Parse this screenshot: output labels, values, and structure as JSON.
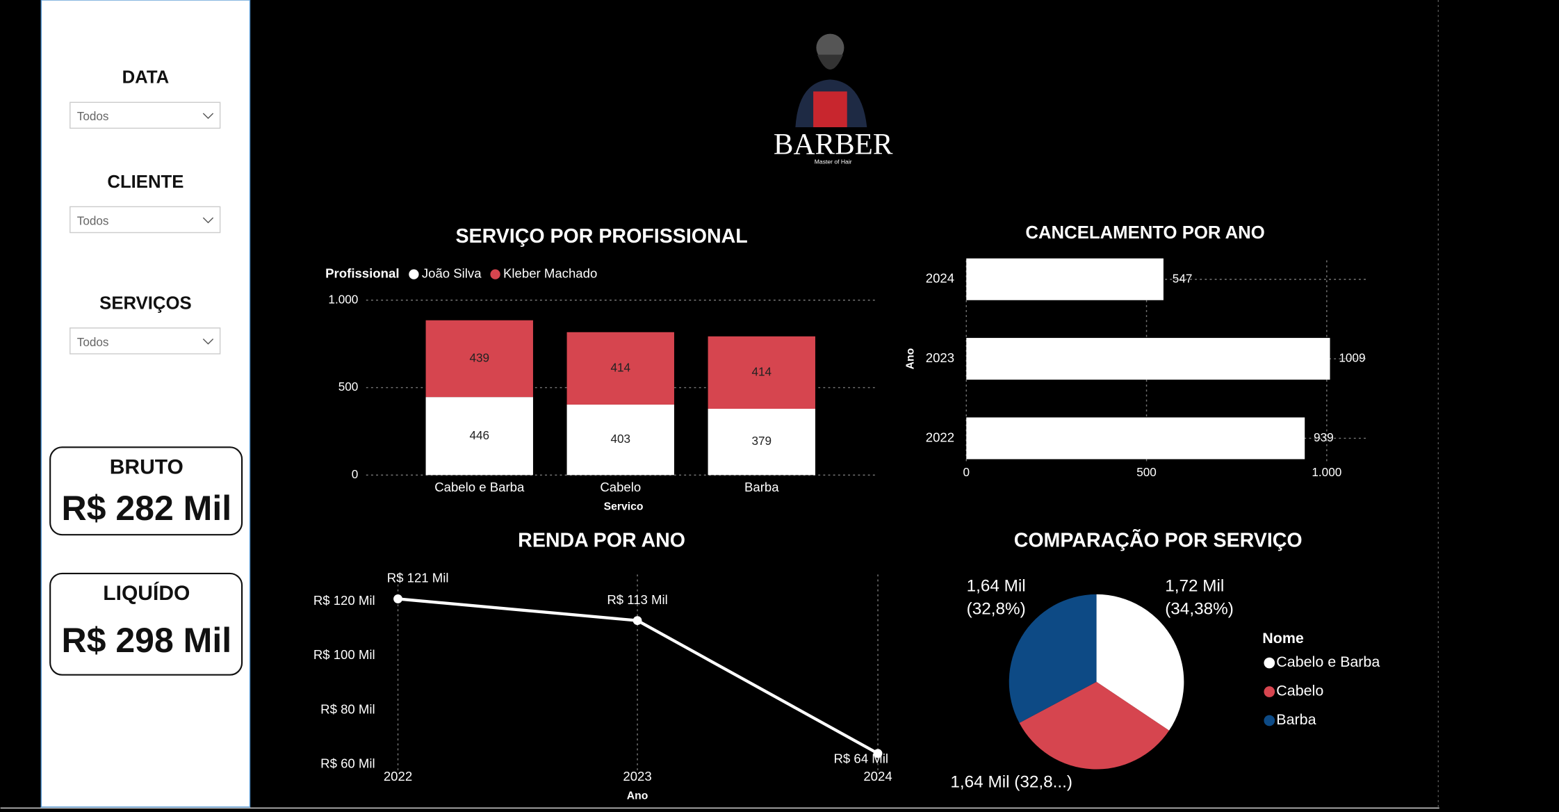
{
  "logo": {
    "name": "BARBER",
    "tagline": "Master of Hair"
  },
  "filters": [
    {
      "label": "DATA",
      "value": "Todos"
    },
    {
      "label": "CLIENTE",
      "value": "Todos"
    },
    {
      "label": "SERVIÇOS",
      "value": "Todos"
    }
  ],
  "kpis": [
    {
      "label": "BRUTO",
      "value": "R$ 282 Mil"
    },
    {
      "label": "LIQUÍDO",
      "value": "R$ 298 Mil"
    }
  ],
  "chart_data": [
    {
      "type": "stacked_bar",
      "title": "SERVIÇO POR PROFISSIONAL",
      "legend_title": "Profissional",
      "x_label": "Servico",
      "categories": [
        "Cabelo e Barba",
        "Cabelo",
        "Barba"
      ],
      "series": [
        {
          "name": "João Silva",
          "color": "#ffffff",
          "values": [
            446,
            403,
            379
          ]
        },
        {
          "name": "Kleber Machado",
          "color": "#d6454f",
          "values": [
            439,
            414,
            414
          ]
        }
      ],
      "ylim": [
        0,
        1000
      ],
      "yticks": [
        0,
        500,
        {
          "value": 1000,
          "label": "1.000"
        }
      ],
      "grid": true
    },
    {
      "type": "hbar",
      "title": "CANCELAMENTO POR ANO",
      "y_label": "Ano",
      "categories": [
        "2024",
        "2023",
        "2022"
      ],
      "values": [
        547,
        1009,
        939
      ],
      "color": "#ffffff",
      "xlim": [
        0,
        1100
      ],
      "xticks": [
        0,
        500,
        {
          "value": 1000,
          "label": "1.000"
        }
      ],
      "grid": true
    },
    {
      "type": "line",
      "title": "RENDA POR ANO",
      "x_label": "Ano",
      "categories": [
        "2022",
        "2023",
        "2024"
      ],
      "values": [
        121000,
        113000,
        64000
      ],
      "value_labels": [
        "R$ 121 Mil",
        "R$ 113 Mil",
        "R$ 64 Mil"
      ],
      "color": "#ffffff",
      "ylim": [
        57800,
        130000
      ],
      "yticks": [
        {
          "value": 60000,
          "label": "R$ 60 Mil"
        },
        {
          "value": 80000,
          "label": "R$ 80 Mil"
        },
        {
          "value": 100000,
          "label": "R$ 100 Mil"
        },
        {
          "value": 120000,
          "label": "R$ 120 Mil"
        }
      ],
      "grid": true
    },
    {
      "type": "pie",
      "title": "COMPARAÇÃO POR SERVIÇO",
      "legend_title": "Nome",
      "categories": [
        "Cabelo e Barba",
        "Cabelo",
        "Barba"
      ],
      "values": [
        1720,
        1640,
        1640
      ],
      "value_labels": [
        "1,72 Mil (34,38%)",
        "1,64 Mil (32,8...)",
        "1,64 Mil (32,8%)"
      ],
      "colors": [
        "#ffffff",
        "#d6454f",
        "#0d4a85"
      ]
    }
  ]
}
